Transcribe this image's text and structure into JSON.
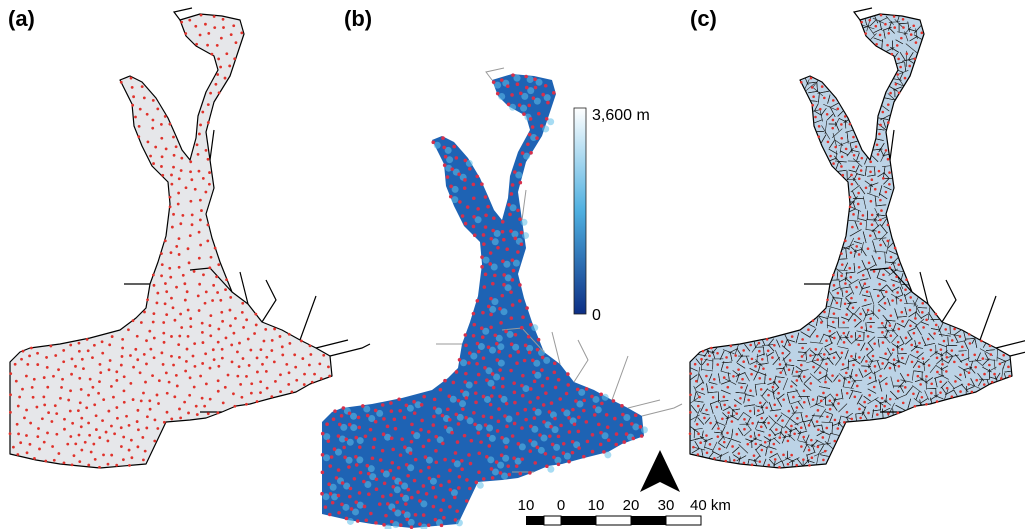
{
  "panels": [
    {
      "label": "(a)",
      "style": "sample-points",
      "fill": "#e6e7ea",
      "point_color": "#e0322b"
    },
    {
      "label": "(b)",
      "style": "distance-raster",
      "fill": "#1e63b4",
      "point_color": "#d6304c"
    },
    {
      "label": "(c)",
      "style": "voronoi-tessellation",
      "fill": "#bcd3e6",
      "point_color": "#e0322b"
    }
  ],
  "colorbar": {
    "max_label": "3,600 m",
    "min_label": "0",
    "color_high": "#ffffff",
    "color_mid": "#4fb0e0",
    "color_low": "#0d2f85"
  },
  "north_arrow": {
    "icon": "north-arrow-icon"
  },
  "scale_bar": {
    "ticks": [
      "10",
      "0",
      "10",
      "20",
      "30",
      "40 km"
    ]
  },
  "colors": {
    "coast": "#000000",
    "river": "#8a8a8a",
    "voronoi_edge": "#1a1a1a"
  }
}
